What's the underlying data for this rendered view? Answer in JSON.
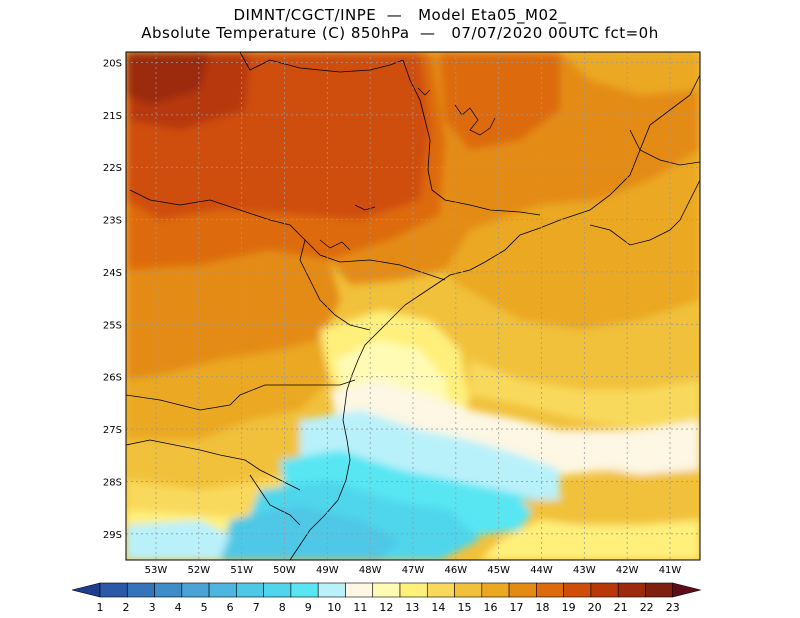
{
  "header": {
    "line1": "DIMNT/CGCT/INPE  —   Model Eta05_M02_",
    "line2": "Absolute Temperature (C) 850hPa  —   07/07/2020 00UTC fct=0h"
  },
  "map": {
    "lat_labels": [
      "20S",
      "21S",
      "22S",
      "23S",
      "24S",
      "25S",
      "26S",
      "27S",
      "28S",
      "29S"
    ],
    "lon_labels": [
      "53W",
      "52W",
      "51W",
      "50W",
      "49W",
      "48W",
      "47W",
      "46W",
      "45W",
      "44W",
      "43W",
      "42W",
      "41W"
    ],
    "lat_range": [
      -29.5,
      -19.8
    ],
    "lon_range": [
      -53.7,
      -40.3
    ],
    "field": "temperature_850hPa"
  },
  "colorbar": {
    "labels": [
      "1",
      "2",
      "3",
      "4",
      "5",
      "6",
      "7",
      "8",
      "9",
      "10",
      "11",
      "12",
      "13",
      "14",
      "15",
      "16",
      "17",
      "18",
      "19",
      "20",
      "21",
      "22",
      "23"
    ],
    "colors": [
      "#1f3d8f",
      "#2b59a8",
      "#3574bb",
      "#3e8dc8",
      "#4aa3d4",
      "#4cb6de",
      "#4fc7e6",
      "#4fd6ec",
      "#58e6f3",
      "#b9f1fa",
      "#fdf7e3",
      "#fffbb5",
      "#fff07c",
      "#f9d95c",
      "#f1c13b",
      "#eba820",
      "#e48b13",
      "#dd6a0c",
      "#cf4d0a",
      "#b8380a",
      "#9c2a0c",
      "#7f1f10",
      "#5e0c18"
    ]
  }
}
